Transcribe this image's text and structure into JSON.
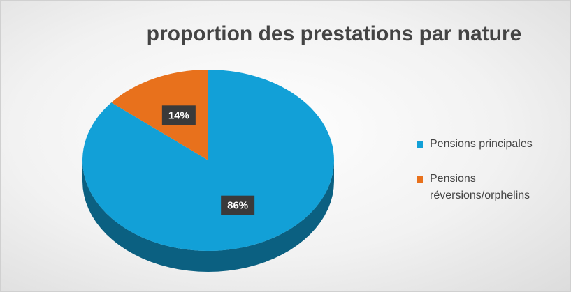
{
  "chart_data": {
    "type": "pie",
    "title": "proportion des prestations par nature",
    "categories": [
      "Pensions principales",
      "Pensions réversions/orphelins"
    ],
    "values": [
      86,
      14
    ],
    "value_labels": [
      "86%",
      "14%"
    ],
    "colors": [
      "#12a0d7",
      "#e8711c"
    ],
    "legend": "right"
  }
}
